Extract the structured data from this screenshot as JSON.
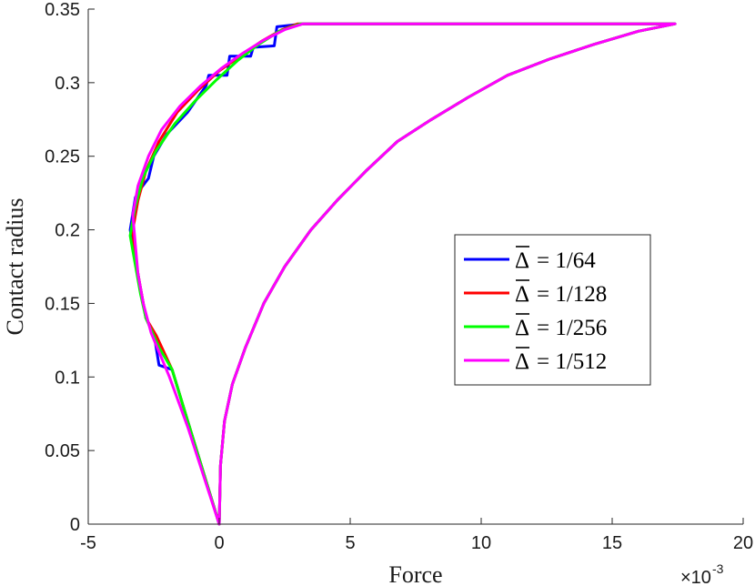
{
  "chart_data": {
    "type": "line",
    "xlabel": "Force",
    "ylabel": "Contact radius",
    "x_multiplier": {
      "base": "×10",
      "exponent": "-3"
    },
    "xlim": [
      -5,
      20
    ],
    "ylim": [
      0,
      0.35
    ],
    "xticks": [
      -5,
      0,
      5,
      10,
      15,
      20
    ],
    "yticks": [
      0,
      0.05,
      0.1,
      0.15,
      0.2,
      0.25,
      0.3,
      0.35
    ],
    "xtick_labels": [
      "-5",
      "0",
      "5",
      "10",
      "15",
      "20"
    ],
    "ytick_labels": [
      "0",
      "0.05",
      "0.1",
      "0.15",
      "0.2",
      "0.25",
      "0.3",
      "0.35"
    ],
    "grid": false,
    "legend_position": "right-middle",
    "series": [
      {
        "name": "Δ̄ = 1/64",
        "legend": {
          "symbol": "Δ",
          "rhs": "= 1/64"
        },
        "color": "#0000ff",
        "x": [
          0,
          0.05,
          0.2,
          0.5,
          1.0,
          1.7,
          2.5,
          3.5,
          4.5,
          5.6,
          6.8,
          8.1,
          9.5,
          11.0,
          12.6,
          14.3,
          16.0,
          17.4,
          17.4,
          3.2,
          2.2,
          2.1,
          1.3,
          1.2,
          0.4,
          0.3,
          -0.4,
          -0.5,
          -1.2,
          -2.0,
          -2.5,
          -2.7,
          -3.0,
          -3.2,
          -3.4,
          -3.2,
          -3.0,
          -2.8,
          -2.5,
          -2.3,
          -1.8,
          -1.2,
          -0.6,
          0
        ],
        "y": [
          0,
          0.04,
          0.07,
          0.095,
          0.12,
          0.15,
          0.175,
          0.2,
          0.22,
          0.24,
          0.26,
          0.275,
          0.29,
          0.305,
          0.316,
          0.326,
          0.335,
          0.34,
          0.34,
          0.34,
          0.338,
          0.325,
          0.324,
          0.318,
          0.318,
          0.305,
          0.305,
          0.298,
          0.28,
          0.265,
          0.25,
          0.235,
          0.228,
          0.222,
          0.2,
          0.18,
          0.16,
          0.14,
          0.13,
          0.108,
          0.105,
          0.07,
          0.035,
          0
        ]
      },
      {
        "name": "Δ̄ = 1/128",
        "legend": {
          "symbol": "Δ",
          "rhs": "= 1/128"
        },
        "color": "#ff0000",
        "x": [
          0,
          0.05,
          0.2,
          0.5,
          1.0,
          1.7,
          2.5,
          3.5,
          4.5,
          5.6,
          6.8,
          8.1,
          9.5,
          11.0,
          12.6,
          14.3,
          16.0,
          17.4,
          17.4,
          3.0,
          2.4,
          1.6,
          0.8,
          0,
          -0.8,
          -1.6,
          -2.3,
          -2.8,
          -3.1,
          -3.3,
          -3.2,
          -3.0,
          -2.8,
          -2.4,
          -1.8,
          -1.2,
          -0.6,
          0
        ],
        "y": [
          0,
          0.04,
          0.07,
          0.095,
          0.12,
          0.15,
          0.175,
          0.2,
          0.22,
          0.24,
          0.26,
          0.275,
          0.29,
          0.305,
          0.316,
          0.326,
          0.335,
          0.34,
          0.34,
          0.34,
          0.336,
          0.328,
          0.318,
          0.308,
          0.295,
          0.28,
          0.26,
          0.24,
          0.22,
          0.2,
          0.18,
          0.16,
          0.14,
          0.128,
          0.105,
          0.07,
          0.035,
          0
        ]
      },
      {
        "name": "Δ̄ = 1/256",
        "legend": {
          "symbol": "Δ",
          "rhs": "= 1/256"
        },
        "color": "#00ff00",
        "x": [
          0,
          0.05,
          0.2,
          0.5,
          1.0,
          1.7,
          2.5,
          3.5,
          4.5,
          5.6,
          6.8,
          8.1,
          9.5,
          11.0,
          12.6,
          14.3,
          16.0,
          17.4,
          17.4,
          3.1,
          2.3,
          1.5,
          0.7,
          -0.1,
          -0.9,
          -1.7,
          -2.4,
          -2.9,
          -3.2,
          -3.4,
          -3.2,
          -3.0,
          -2.8,
          -2.3,
          -1.8,
          -1.2,
          -0.6,
          0
        ],
        "y": [
          0,
          0.04,
          0.07,
          0.095,
          0.12,
          0.15,
          0.175,
          0.2,
          0.22,
          0.24,
          0.26,
          0.275,
          0.29,
          0.305,
          0.316,
          0.326,
          0.335,
          0.34,
          0.34,
          0.34,
          0.335,
          0.326,
          0.315,
          0.302,
          0.288,
          0.272,
          0.254,
          0.236,
          0.216,
          0.196,
          0.176,
          0.156,
          0.14,
          0.12,
          0.105,
          0.07,
          0.035,
          0
        ]
      },
      {
        "name": "Δ̄ = 1/512",
        "legend": {
          "symbol": "Δ",
          "rhs": "= 1/512"
        },
        "color": "#ff00ff",
        "x": [
          0,
          0.05,
          0.2,
          0.5,
          1.0,
          1.7,
          2.5,
          3.5,
          4.5,
          5.6,
          6.8,
          8.1,
          9.5,
          11.0,
          12.6,
          14.3,
          16.0,
          17.4,
          17.4,
          3.2,
          2.5,
          1.7,
          0.9,
          0.1,
          -0.7,
          -1.5,
          -2.2,
          -2.7,
          -3.1,
          -3.3,
          -3.2,
          -3.1,
          -2.9,
          -2.6,
          -1.9,
          -1.2,
          -0.6,
          0
        ],
        "y": [
          0,
          0.04,
          0.07,
          0.095,
          0.12,
          0.15,
          0.175,
          0.2,
          0.22,
          0.24,
          0.26,
          0.275,
          0.29,
          0.305,
          0.316,
          0.326,
          0.335,
          0.34,
          0.34,
          0.34,
          0.336,
          0.329,
          0.32,
          0.31,
          0.298,
          0.284,
          0.268,
          0.25,
          0.23,
          0.21,
          0.19,
          0.17,
          0.15,
          0.13,
          0.1,
          0.066,
          0.033,
          0
        ]
      }
    ]
  }
}
